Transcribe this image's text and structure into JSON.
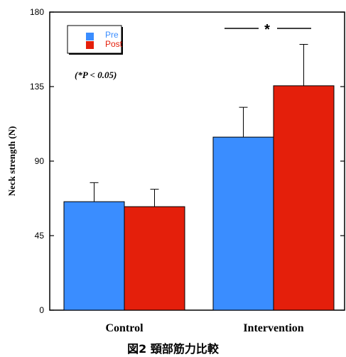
{
  "chart_data": {
    "type": "bar",
    "categories": [
      "Control",
      "Intervention"
    ],
    "series": [
      {
        "name": "Pre",
        "values": [
          65.5,
          104.5
        ],
        "errors": [
          11.5,
          18
        ],
        "color": "#3a8dff"
      },
      {
        "name": "Post",
        "values": [
          62.5,
          135.5
        ],
        "errors": [
          10.5,
          25
        ],
        "color": "#e41f0b"
      }
    ],
    "ylabel": "Neck strength (N)",
    "xlabel": "",
    "ylim": [
      0,
      180
    ],
    "yticks": [
      0,
      45,
      90,
      135,
      180
    ],
    "legend_placement": "top-left",
    "annotations": {
      "note": "(*P < 0.05)",
      "significance_marker": "*"
    },
    "grid": false
  },
  "caption": "図2 頸部筋力比較"
}
